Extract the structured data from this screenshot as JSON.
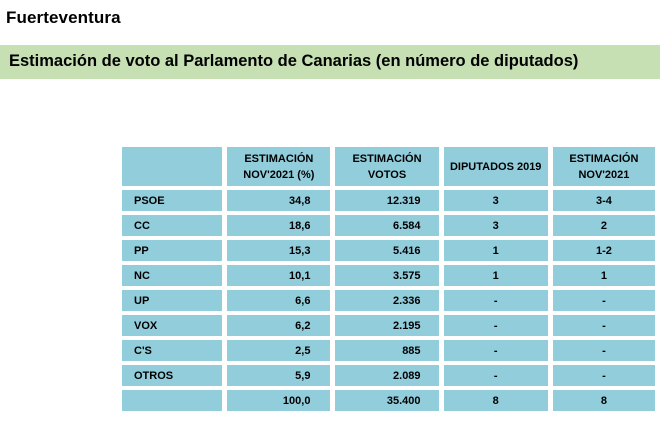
{
  "region": "Fuerteventura",
  "subtitle": "Estimación de voto al Parlamento de Canarias (en número de diputados)",
  "table": {
    "headers": [
      "",
      "ESTIMACIÓN\nNOV'2021 (%)",
      "ESTIMACIÓN\nVOTOS",
      "DIPUTADOS 2019",
      "ESTIMACIÓN\nNOV'2021"
    ],
    "rows": [
      [
        "PSOE",
        "34,8",
        "12.319",
        "3",
        "3-4"
      ],
      [
        "CC",
        "18,6",
        "6.584",
        "3",
        "2"
      ],
      [
        "PP",
        "15,3",
        "5.416",
        "1",
        "1-2"
      ],
      [
        "NC",
        "10,1",
        "3.575",
        "1",
        "1"
      ],
      [
        "UP",
        "6,6",
        "2.336",
        "-",
        "-"
      ],
      [
        "VOX",
        "6,2",
        "2.195",
        "-",
        "-"
      ],
      [
        "C'S",
        "2,5",
        "885",
        "-",
        "-"
      ],
      [
        "OTROS",
        "5,9",
        "2.089",
        "-",
        "-"
      ],
      [
        "",
        "100,0",
        "35.400",
        "8",
        "8"
      ]
    ]
  },
  "colors": {
    "banner": "#c6e0b4",
    "cell": "#92cddc"
  }
}
